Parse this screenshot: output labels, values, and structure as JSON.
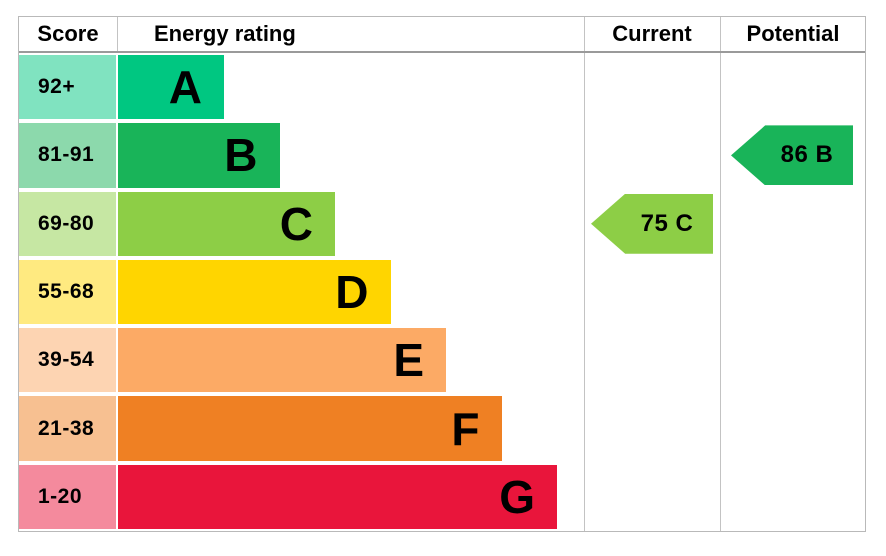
{
  "header": {
    "score": "Score",
    "energy_rating": "Energy rating",
    "current": "Current",
    "potential": "Potential"
  },
  "chart_data": {
    "type": "bar",
    "title": "EPC energy efficiency rating chart",
    "bands": [
      {
        "score": "92+",
        "letter": "A",
        "color": "#00c781",
        "color_light": "#80e3c0"
      },
      {
        "score": "81-91",
        "letter": "B",
        "color": "#19b459",
        "color_light": "#8cd9ac"
      },
      {
        "score": "69-80",
        "letter": "C",
        "color": "#8dce46",
        "color_light": "#c6e7a3"
      },
      {
        "score": "55-68",
        "letter": "D",
        "color": "#ffd500",
        "color_light": "#ffea80"
      },
      {
        "score": "39-54",
        "letter": "E",
        "color": "#fcaa65",
        "color_light": "#fdd4b2"
      },
      {
        "score": "21-38",
        "letter": "F",
        "color": "#ef8023",
        "color_light": "#f7c091"
      },
      {
        "score": "1-20",
        "letter": "G",
        "color": "#e9153b",
        "color_light": "#f48a9d"
      }
    ],
    "current": {
      "value": 75,
      "band": "C",
      "label": "75 C",
      "band_index": 2,
      "color": "#8dce46"
    },
    "potential": {
      "value": 86,
      "band": "B",
      "label": "86 B",
      "band_index": 1,
      "color": "#19b459"
    }
  }
}
